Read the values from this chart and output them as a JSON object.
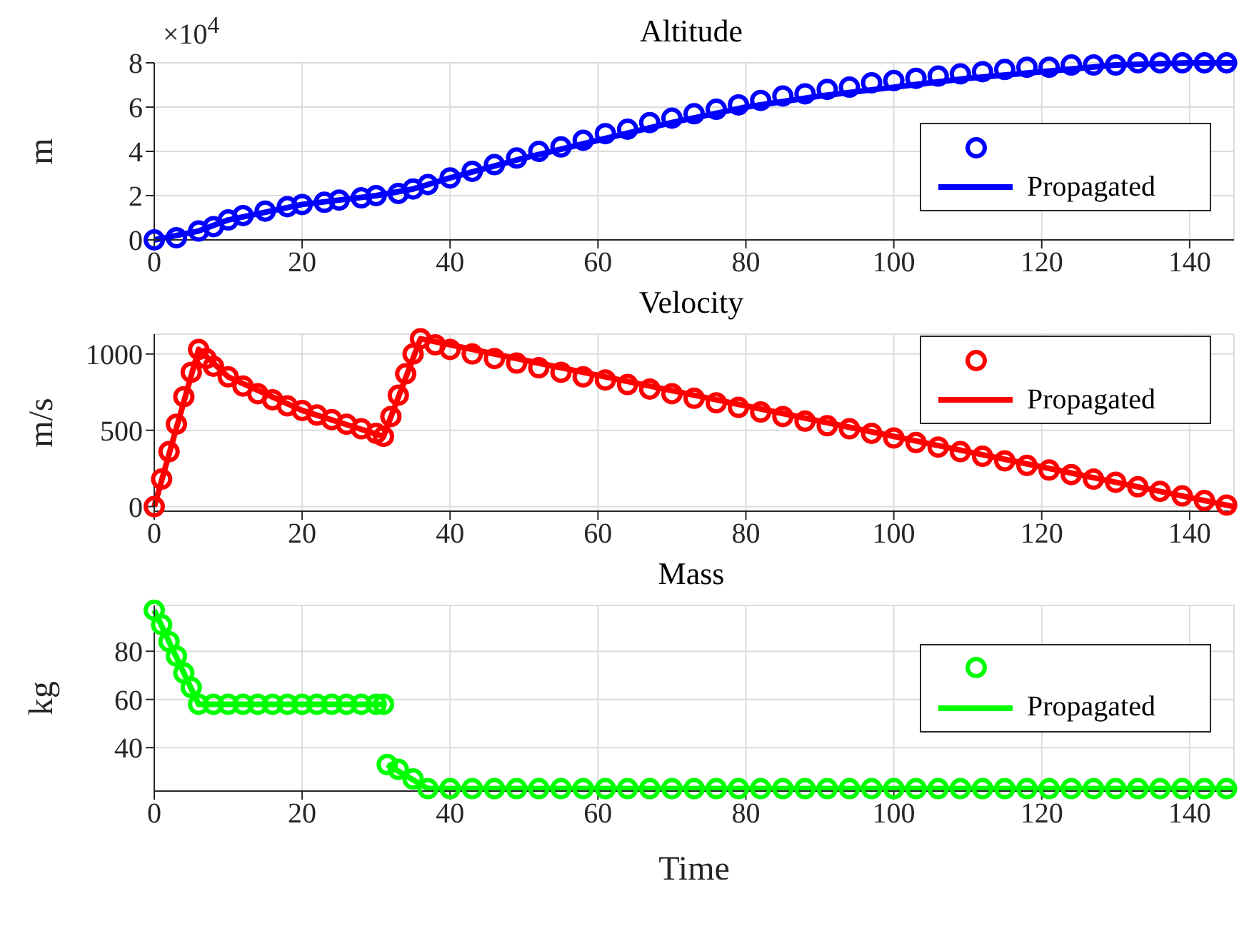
{
  "chart_data": [
    {
      "type": "scatter",
      "title": "Altitude",
      "ylabel": "m",
      "annotations": [
        "×10$^{4}$"
      ],
      "xlim": [
        0,
        146
      ],
      "xticks": [
        0,
        20,
        40,
        60,
        80,
        100,
        120,
        140
      ],
      "ylim": [
        0,
        8
      ],
      "yticks": [
        0,
        2,
        4,
        6,
        8
      ],
      "grid": true,
      "legend": "bottom right",
      "series": [
        {
          "color": "#0000ff",
          "marker": "circle",
          "x": [
            0,
            3,
            6,
            8,
            10,
            12,
            15,
            18,
            20,
            23,
            25,
            28,
            30,
            33,
            35,
            37,
            40,
            43,
            46,
            49,
            52,
            55,
            58,
            61,
            64,
            67,
            70,
            73,
            76,
            79,
            82,
            85,
            88,
            91,
            94,
            97,
            100,
            103,
            106,
            109,
            112,
            115,
            118,
            121,
            124,
            127,
            130,
            133,
            136,
            139,
            142,
            145
          ],
          "values": [
            0,
            0.1,
            0.4,
            0.6,
            0.9,
            1.1,
            1.3,
            1.5,
            1.6,
            1.7,
            1.8,
            1.9,
            2.0,
            2.1,
            2.3,
            2.5,
            2.8,
            3.1,
            3.4,
            3.7,
            4.0,
            4.2,
            4.5,
            4.8,
            5.0,
            5.3,
            5.5,
            5.7,
            5.9,
            6.1,
            6.3,
            6.5,
            6.6,
            6.8,
            6.9,
            7.1,
            7.2,
            7.3,
            7.4,
            7.5,
            7.6,
            7.7,
            7.8,
            7.8,
            7.9,
            7.9,
            7.9,
            8.0,
            8.0,
            8.0,
            8.0,
            8.0
          ]
        },
        {
          "type": "line",
          "name": "Propagated",
          "color": "#0000ff",
          "x": [
            0,
            6,
            10,
            20,
            30,
            35,
            40,
            50,
            60,
            70,
            80,
            90,
            100,
            110,
            120,
            130,
            140,
            146
          ],
          "values": [
            0,
            0.4,
            0.9,
            1.6,
            2.0,
            2.3,
            2.8,
            3.7,
            4.5,
            5.3,
            6.0,
            6.5,
            6.9,
            7.3,
            7.6,
            7.9,
            8.0,
            8.0
          ]
        }
      ]
    },
    {
      "type": "scatter",
      "title": "Velocity",
      "ylabel": "m/s",
      "xlim": [
        0,
        146
      ],
      "xticks": [
        0,
        20,
        40,
        60,
        80,
        100,
        120,
        140
      ],
      "ylim": [
        -30,
        1130
      ],
      "yticks": [
        0,
        500,
        1000
      ],
      "grid": true,
      "legend": "top right",
      "series": [
        {
          "color": "#ff0000",
          "marker": "circle",
          "x": [
            0,
            1,
            2,
            3,
            4,
            5,
            6,
            7,
            8,
            10,
            12,
            14,
            16,
            18,
            20,
            22,
            24,
            26,
            28,
            30,
            31,
            32,
            33,
            34,
            35,
            36,
            38,
            40,
            43,
            46,
            49,
            52,
            55,
            58,
            61,
            64,
            67,
            70,
            73,
            76,
            79,
            82,
            85,
            88,
            91,
            94,
            97,
            100,
            103,
            106,
            109,
            112,
            115,
            118,
            121,
            124,
            127,
            130,
            133,
            136,
            139,
            142,
            145
          ],
          "values": [
            0,
            180,
            360,
            540,
            720,
            880,
            1030,
            970,
            920,
            850,
            790,
            740,
            700,
            660,
            630,
            600,
            570,
            540,
            510,
            480,
            460,
            590,
            730,
            870,
            1000,
            1100,
            1060,
            1030,
            1000,
            970,
            940,
            910,
            880,
            850,
            830,
            800,
            770,
            740,
            710,
            680,
            650,
            620,
            590,
            560,
            530,
            510,
            480,
            450,
            420,
            390,
            360,
            330,
            300,
            270,
            240,
            210,
            180,
            160,
            130,
            100,
            70,
            40,
            10
          ]
        },
        {
          "type": "line",
          "name": "Propagated",
          "color": "#ff0000",
          "x": [
            0,
            6,
            10,
            20,
            31,
            36,
            146
          ],
          "values": [
            0,
            1030,
            850,
            630,
            460,
            1100,
            0
          ]
        }
      ]
    },
    {
      "type": "scatter",
      "title": "Mass",
      "xlabel": "Time",
      "ylabel": "kg",
      "xlim": [
        0,
        146
      ],
      "xticks": [
        0,
        20,
        40,
        60,
        80,
        100,
        120,
        140
      ],
      "ylim": [
        22,
        99
      ],
      "yticks": [
        40,
        60,
        80
      ],
      "grid": true,
      "legend": "right",
      "series": [
        {
          "color": "#00ff00",
          "marker": "circle",
          "x": [
            0,
            1,
            2,
            3,
            4,
            5,
            6,
            8,
            10,
            12,
            14,
            16,
            18,
            20,
            22,
            24,
            26,
            28,
            30,
            31,
            31.5,
            33,
            35,
            37,
            40,
            43,
            46,
            49,
            52,
            55,
            58,
            61,
            64,
            67,
            70,
            73,
            76,
            79,
            82,
            85,
            88,
            91,
            94,
            97,
            100,
            103,
            106,
            109,
            112,
            115,
            118,
            121,
            124,
            127,
            130,
            133,
            136,
            139,
            142,
            145
          ],
          "values": [
            97,
            91,
            84,
            78,
            71,
            65,
            58,
            58,
            58,
            58,
            58,
            58,
            58,
            58,
            58,
            58,
            58,
            58,
            58,
            58,
            33,
            31,
            27,
            23,
            23,
            23,
            23,
            23,
            23,
            23,
            23,
            23,
            23,
            23,
            23,
            23,
            23,
            23,
            23,
            23,
            23,
            23,
            23,
            23,
            23,
            23,
            23,
            23,
            23,
            23,
            23,
            23,
            23,
            23,
            23,
            23,
            23,
            23,
            23,
            23
          ]
        },
        {
          "type": "line",
          "name": "Propagated",
          "color": "#00ff00",
          "x": [
            0,
            6,
            31,
            31.2,
            31.5,
            37,
            146
          ],
          "values": [
            97,
            58,
            58,
            null,
            33,
            23,
            23
          ]
        }
      ]
    }
  ]
}
